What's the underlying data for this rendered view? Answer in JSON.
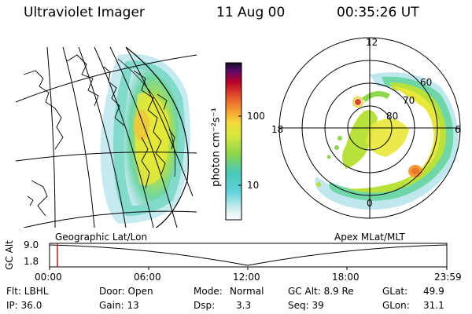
{
  "header": {
    "instrument": "Ultraviolet Imager",
    "date": "11 Aug 00",
    "time": "00:35:26 UT"
  },
  "colorbar": {
    "unit_label": "photon cm⁻²s⁻¹",
    "tick_labels": [
      "100",
      "10"
    ]
  },
  "maps": {
    "left_title": "Geographic Lat/Lon",
    "right_title": "Apex MLat/MLT"
  },
  "polar": {
    "mlt_labels": {
      "top": "12",
      "left": "18",
      "right": "6",
      "bottom": "0"
    },
    "lat_labels": [
      "60",
      "70",
      "80"
    ]
  },
  "altitude_plot": {
    "ylabel": "GC Alt",
    "yticks": [
      "9.0",
      "1.8"
    ],
    "xticks": [
      "00:00",
      "06:00",
      "12:00",
      "18:00",
      "23:59"
    ]
  },
  "status": {
    "flt": "Flt: LBHL",
    "ip": "IP: 36.0",
    "door": "Door: Open",
    "gain": "Gain: 13",
    "mode_label": "Mode:",
    "mode_value": "Normal",
    "dsp_label": "Dsp:",
    "dsp_value": "3.3",
    "gcalt": "GC Alt: 8.9 Re",
    "seq": "Seq: 39",
    "glat": "GLat:",
    "glat_value": "49.9",
    "glon": "GLon:",
    "glon_value": "31.1"
  },
  "colors": {
    "scale": [
      "#ffffff",
      "#d8eef0",
      "#6fd6d8",
      "#3cc6c8",
      "#7fd35a",
      "#b8e23a",
      "#e8e83a",
      "#f6c23c",
      "#f08a30",
      "#e0442c",
      "#b8002a",
      "#70008a",
      "#1a0a30"
    ],
    "accent_red": "#e01010"
  }
}
